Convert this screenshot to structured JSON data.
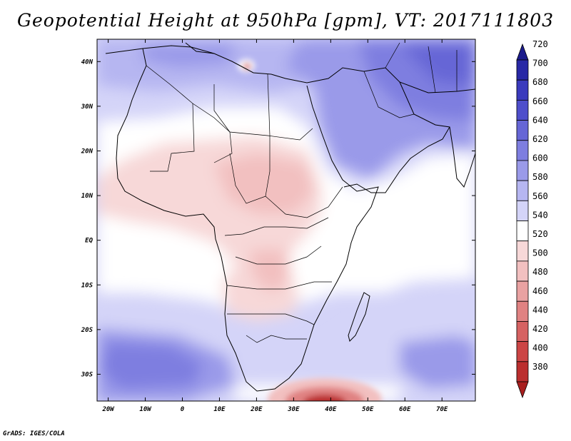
{
  "title": "Geopotential Height at 950hPa [gpm], VT: 2017111803",
  "footer": "GrADS: IGES/COLA",
  "map": {
    "lon_range": [
      -23,
      79
    ],
    "lat_range": [
      -36,
      45
    ],
    "lon_ticks": [
      {
        "value": -20,
        "label": "20W"
      },
      {
        "value": -10,
        "label": "10W"
      },
      {
        "value": 0,
        "label": "0"
      },
      {
        "value": 10,
        "label": "10E"
      },
      {
        "value": 20,
        "label": "20E"
      },
      {
        "value": 30,
        "label": "30E"
      },
      {
        "value": 40,
        "label": "40E"
      },
      {
        "value": 50,
        "label": "50E"
      },
      {
        "value": 60,
        "label": "60E"
      },
      {
        "value": 70,
        "label": "70E"
      }
    ],
    "lat_ticks": [
      {
        "value": 40,
        "label": "40N"
      },
      {
        "value": 30,
        "label": "30N"
      },
      {
        "value": 20,
        "label": "20N"
      },
      {
        "value": 10,
        "label": "10N"
      },
      {
        "value": 0,
        "label": "EQ"
      },
      {
        "value": -10,
        "label": "10S"
      },
      {
        "value": -20,
        "label": "20S"
      },
      {
        "value": -30,
        "label": "30S"
      }
    ]
  },
  "colorbar": {
    "levels": [
      720,
      700,
      680,
      660,
      640,
      620,
      600,
      580,
      560,
      540,
      520,
      500,
      480,
      460,
      440,
      420,
      400,
      380
    ],
    "colors": [
      "#1b1b8c",
      "#2828a6",
      "#3a3abd",
      "#4e4ecb",
      "#6666d6",
      "#7e7ee0",
      "#9a9ae9",
      "#b6b6f1",
      "#d4d4f8",
      "#ffffff",
      "#f7d8d8",
      "#f2c0c0",
      "#e9a2a2",
      "#e08282",
      "#d66262",
      "#cc4545",
      "#bb2e2e",
      "#a81e1e"
    ]
  }
}
